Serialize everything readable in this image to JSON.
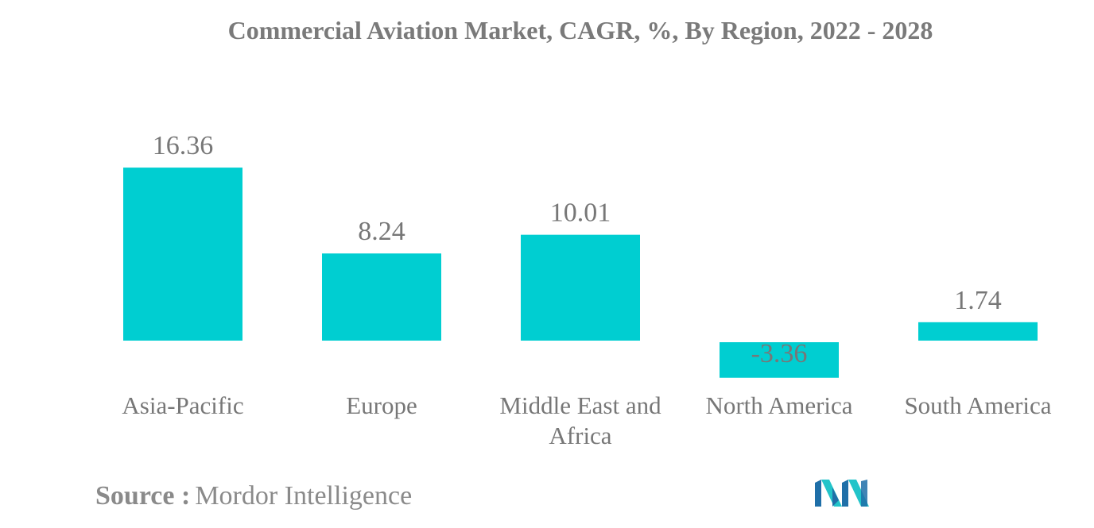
{
  "chart_data": {
    "type": "bar",
    "title": "Commercial Aviation Market, CAGR, %, By Region, 2022 - 2028",
    "categories": [
      "Asia-Pacific",
      "Europe",
      "Middle East and Africa",
      "North America",
      "South America"
    ],
    "category_lines": [
      [
        "Asia-Pacific"
      ],
      [
        "Europe"
      ],
      [
        "Middle East and",
        "Africa"
      ],
      [
        "North America"
      ],
      [
        "South America"
      ]
    ],
    "values": [
      16.36,
      8.24,
      10.01,
      -3.36,
      1.74
    ],
    "value_labels": [
      "16.36",
      "8.24",
      "10.01",
      "-3.36",
      "1.74"
    ],
    "bar_color": "#00ced1",
    "label_color": "#777777",
    "grid": false,
    "legend": "none"
  },
  "source": {
    "label": "Source :",
    "name": "Mordor Intelligence"
  },
  "logo": {
    "icon": "mordor-intelligence-logo",
    "colors": [
      "#1f6fa8",
      "#22c4c9"
    ]
  }
}
